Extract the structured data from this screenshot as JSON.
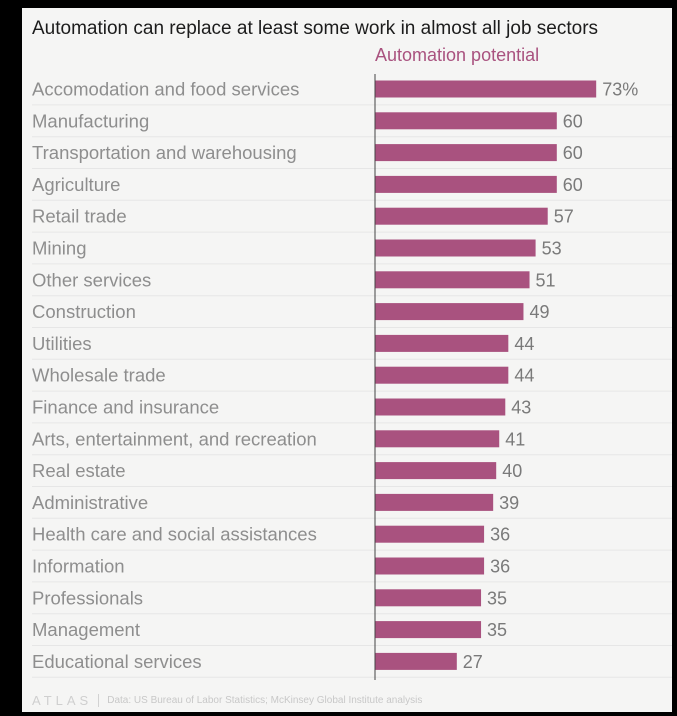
{
  "colors": {
    "bar": "#a9527f",
    "series_label": "#a9527f",
    "category_label": "#8e8e8e",
    "value_label": "#7a7a7a",
    "gridline": "#e6e6e6",
    "axis": "#444444"
  },
  "chart_data": {
    "type": "bar",
    "orientation": "horizontal",
    "title": "Automation can replace at least some work in almost all job sectors",
    "series_label": "Automation potential",
    "categories": [
      "Accomodation and food services",
      "Manufacturing",
      "Transportation and warehousing",
      "Agriculture",
      "Retail trade",
      "Mining",
      "Other services",
      "Construction",
      "Utilities",
      "Wholesale trade",
      "Finance and insurance",
      "Arts, entertainment, and recreation",
      "Real estate",
      "Administrative",
      "Health care and social assistances",
      "Information",
      "Professionals",
      "Management",
      "Educational services"
    ],
    "values": [
      73,
      60,
      60,
      60,
      57,
      53,
      51,
      49,
      44,
      44,
      43,
      41,
      40,
      39,
      36,
      36,
      35,
      35,
      27
    ],
    "value_labels": [
      "73%",
      "60",
      "60",
      "60",
      "57",
      "53",
      "51",
      "49",
      "44",
      "44",
      "43",
      "41",
      "40",
      "39",
      "36",
      "36",
      "35",
      "35",
      "27"
    ],
    "xlim": [
      0,
      80
    ],
    "grid": true,
    "legend": "none"
  },
  "footer": {
    "logo": "ATLAS",
    "source": "Data: US Bureau of Labor Statistics; McKinsey Global Institute analysis"
  }
}
